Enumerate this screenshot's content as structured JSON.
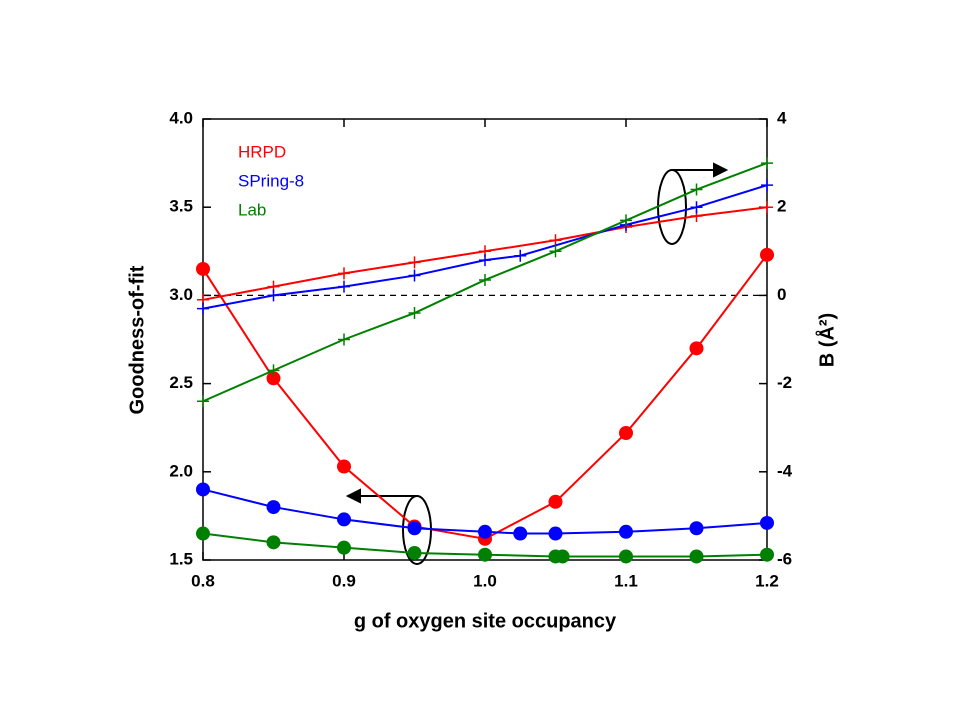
{
  "chart_data": {
    "type": "line",
    "xlabel": "g of oxygen site occupancy",
    "ylabel": "Goodness-of-fit",
    "y2label": "B (Å²)",
    "xlim": [
      0.8,
      1.2
    ],
    "xticks": [
      0.8,
      0.9,
      {
        "value": 1.0,
        "label": "1.0"
      },
      1.1,
      1.2
    ],
    "ylim": [
      1.5,
      4.0
    ],
    "yticks": [
      1.5,
      {
        "value": 2.0,
        "label": "2.0"
      },
      2.5,
      {
        "value": 3.0,
        "label": "3.0"
      },
      3.5,
      {
        "value": 4.0,
        "label": "4.0"
      }
    ],
    "y2lim": [
      -6,
      4
    ],
    "y2ticks": [
      -6,
      -4,
      -2,
      0,
      2,
      4
    ],
    "reference_line": {
      "axis": "y2",
      "value": 0
    },
    "series": [
      {
        "name": "HRPD",
        "color": "#ff0000",
        "marker": "circle",
        "x": [
          0.8,
          0.85,
          0.9,
          0.95,
          1.0,
          1.05,
          1.1,
          1.15,
          1.2
        ],
        "values": [
          3.15,
          2.53,
          2.03,
          1.69,
          1.62,
          1.83,
          2.22,
          2.7,
          3.23
        ]
      },
      {
        "name": "SPring-8",
        "color": "#0000ff",
        "marker": "circle",
        "x": [
          0.8,
          0.85,
          0.9,
          0.95,
          1.0,
          1.025,
          1.05,
          1.1,
          1.15,
          1.2
        ],
        "values": [
          1.9,
          1.8,
          1.73,
          1.68,
          1.66,
          1.65,
          1.65,
          1.66,
          1.68,
          1.71
        ]
      },
      {
        "name": "Lab",
        "color": "#008000",
        "marker": "circle",
        "x": [
          0.8,
          0.85,
          0.9,
          0.95,
          1.0,
          1.05,
          1.055,
          1.1,
          1.15,
          1.2
        ],
        "values": [
          1.65,
          1.6,
          1.57,
          1.54,
          1.53,
          1.52,
          1.52,
          1.52,
          1.52,
          1.53
        ]
      },
      {
        "color": "#ff0000",
        "marker": "plus",
        "axis": "y2",
        "x": [
          0.8,
          0.85,
          0.9,
          0.95,
          1.0,
          1.05,
          1.1,
          1.15,
          1.2
        ],
        "values": [
          -0.1,
          0.2,
          0.5,
          0.75,
          1.0,
          1.25,
          1.55,
          1.8,
          2.0
        ]
      },
      {
        "color": "#0000ff",
        "marker": "plus",
        "axis": "y2",
        "x": [
          0.8,
          0.85,
          0.9,
          0.95,
          1.0,
          1.025,
          1.1,
          1.15,
          1.2
        ],
        "values": [
          -0.3,
          0.0,
          0.2,
          0.45,
          0.8,
          0.9,
          1.6,
          2.0,
          2.5
        ]
      },
      {
        "color": "#008000",
        "marker": "plus",
        "axis": "y2",
        "x": [
          0.8,
          0.85,
          0.9,
          0.95,
          1.0,
          1.05,
          1.1,
          1.15,
          1.2
        ],
        "values": [
          -2.4,
          -1.7,
          -1.0,
          -0.4,
          0.35,
          1.0,
          1.7,
          2.4,
          3.0
        ]
      }
    ]
  }
}
